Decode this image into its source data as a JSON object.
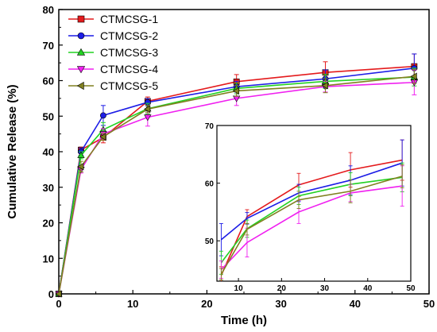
{
  "chart_data": [
    {
      "type": "line",
      "title": "",
      "xlabel": "Time (h)",
      "ylabel": "Cumulative Release (%)",
      "xlim": [
        0,
        50
      ],
      "ylim": [
        0,
        80
      ],
      "xticks": [
        0,
        10,
        20,
        30,
        40,
        50
      ],
      "yticks": [
        0,
        10,
        20,
        30,
        40,
        50,
        60,
        70,
        80
      ],
      "grid": false,
      "legend": "top-left",
      "x": [
        0,
        3,
        6,
        12,
        24,
        36,
        48
      ],
      "series": [
        {
          "name": "CTMCSG-1",
          "color": "#e41a1c",
          "marker": "square",
          "values": [
            0,
            40.5,
            44.0,
            54.2,
            59.7,
            62.3,
            64.0
          ],
          "errors": [
            0,
            0.8,
            1.5,
            1.2,
            2.0,
            3.0,
            3.5
          ]
        },
        {
          "name": "CTMCSG-2",
          "color": "#1c1ce6",
          "marker": "circle",
          "values": [
            0,
            40.0,
            50.2,
            53.9,
            58.3,
            60.5,
            63.5
          ],
          "errors": [
            0,
            1.0,
            2.8,
            1.0,
            1.5,
            2.5,
            4.0
          ]
        },
        {
          "name": "CTMCSG-3",
          "color": "#22d222",
          "marker": "triangle-up",
          "values": [
            0,
            39.0,
            46.2,
            52.1,
            57.8,
            59.8,
            61.0
          ],
          "errors": [
            0,
            1.0,
            2.0,
            1.5,
            1.5,
            2.0,
            2.5
          ]
        },
        {
          "name": "CTMCSG-4",
          "color": "#f020f0",
          "marker": "triangle-down",
          "values": [
            0,
            35.0,
            45.0,
            49.7,
            55.0,
            58.3,
            59.5
          ],
          "errors": [
            0,
            1.0,
            1.5,
            2.5,
            2.0,
            1.5,
            3.5
          ]
        },
        {
          "name": "CTMCSG-5",
          "color": "#808020",
          "marker": "triangle-left",
          "values": [
            0,
            35.8,
            44.2,
            52.0,
            57.1,
            58.6,
            61.2
          ],
          "errors": [
            0,
            1.5,
            1.0,
            1.0,
            1.5,
            2.0,
            2.0
          ]
        }
      ]
    },
    {
      "type": "line",
      "title": "",
      "xlabel": "",
      "ylabel": "",
      "xlim": [
        5,
        50
      ],
      "ylim": [
        43,
        70
      ],
      "xticks": [
        10,
        20,
        30,
        40,
        50
      ],
      "yticks": [
        50,
        60,
        70
      ],
      "grid": false,
      "legend": "none",
      "inset": true,
      "x": [
        6,
        12,
        24,
        36,
        48
      ],
      "series_ref": "same as main chart"
    }
  ]
}
